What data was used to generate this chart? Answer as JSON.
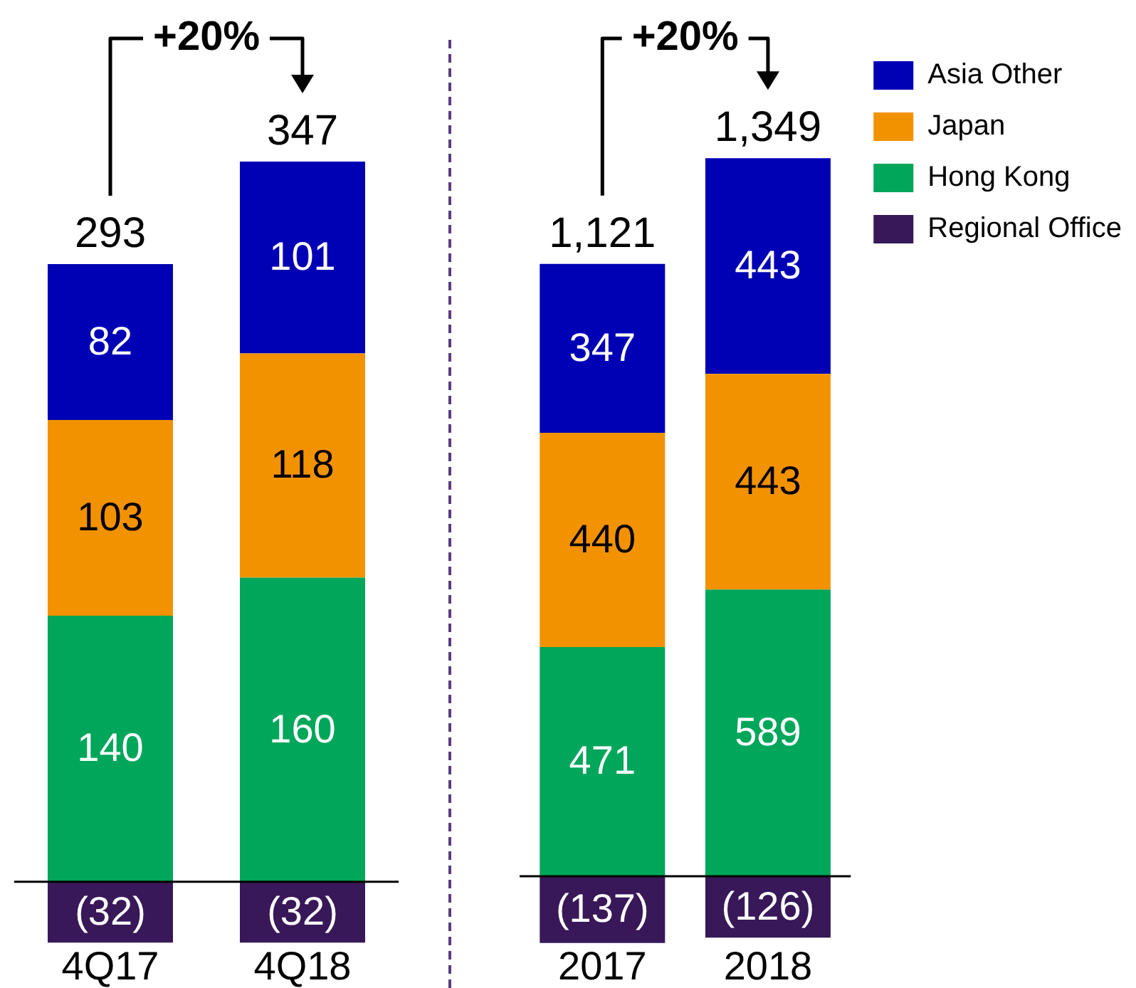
{
  "chart_data": [
    {
      "type": "bar",
      "categories": [
        "4Q17",
        "4Q18"
      ],
      "stacked": true,
      "ylim": [
        -33,
        464
      ],
      "tick_labels": "x",
      "data_labels": true,
      "totals": [
        "293",
        "347"
      ],
      "annotations": [
        "+20%"
      ],
      "legend": false,
      "series": [
        {
          "color": "#00a65a",
          "values": [
            140,
            160
          ]
        },
        {
          "color": "#f39200",
          "values": [
            103,
            118
          ]
        },
        {
          "color": "#0000b4",
          "values": [
            82,
            101
          ]
        },
        {
          "color": "#381858",
          "values": [
            -32,
            -32
          ],
          "value_labels": [
            "(32)",
            "(32)"
          ]
        }
      ]
    },
    {
      "type": "bar",
      "categories": [
        "2017",
        "2018"
      ],
      "stacked": true,
      "ylim": [
        -140,
        1800
      ],
      "tick_labels": "x",
      "data_labels": true,
      "totals": [
        "1,121",
        "1,349"
      ],
      "annotations": [
        "+20%"
      ],
      "legend": "top right",
      "series": [
        {
          "name": "Regional Office",
          "color": "#381858",
          "values": [
            -137,
            -126
          ],
          "value_labels": [
            "(137)",
            "(126)"
          ]
        },
        {
          "name": "Hong Kong",
          "color": "#00a65a",
          "values": [
            471,
            589
          ]
        },
        {
          "name": "Japan",
          "color": "#f39200",
          "values": [
            440,
            443
          ]
        },
        {
          "name": "Asia Other",
          "color": "#0000b4",
          "values": [
            347,
            443
          ]
        }
      ]
    }
  ]
}
